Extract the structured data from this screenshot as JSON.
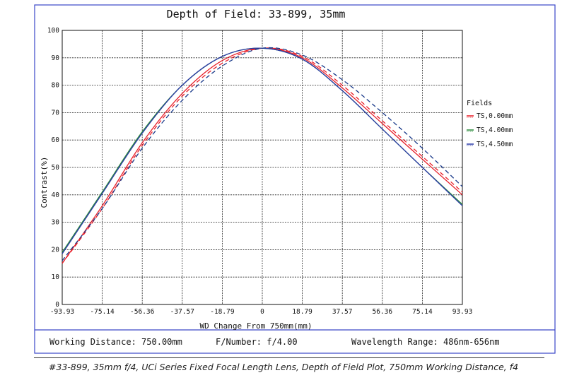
{
  "chart_data": {
    "type": "line",
    "title": "Depth of Field: 33-899, 35mm",
    "xlabel": "WD Change From 750mm(mm)",
    "ylabel": "Contrast(%)",
    "xlim": [
      -93.93,
      93.93
    ],
    "ylim": [
      0,
      100
    ],
    "x_ticks": [
      "-93.93",
      "-75.14",
      "-56.36",
      "-37.57",
      "-18.79",
      "0",
      "18.79",
      "37.57",
      "56.36",
      "75.14",
      "93.93"
    ],
    "y_ticks": [
      "0",
      "10",
      "20",
      "30",
      "40",
      "50",
      "60",
      "70",
      "80",
      "90",
      "100"
    ],
    "grid": true,
    "legend_title": "Fields",
    "legend_position": "right",
    "series": [
      {
        "name": "TS,0.00mm",
        "color": "#e8202a",
        "style": "solid",
        "x": [
          -93.93,
          -75.14,
          -56.36,
          -37.57,
          -18.79,
          0,
          18.79,
          37.57,
          56.36,
          75.14,
          93.93
        ],
        "y": [
          15,
          36,
          59,
          77,
          89,
          93.5,
          90,
          79,
          66,
          53,
          40
        ]
      },
      {
        "name": "TS,0.00mm (S)",
        "color": "#e8202a",
        "style": "dashed",
        "x": [
          -93.93,
          -75.14,
          -56.36,
          -37.57,
          -18.79,
          0,
          18.79,
          37.57,
          56.36,
          75.14,
          93.93
        ],
        "y": [
          15,
          35,
          58,
          76,
          88,
          93.5,
          90.5,
          80,
          67,
          54,
          41
        ]
      },
      {
        "name": "TS,4.00mm",
        "color": "#2a8a3a",
        "style": "solid",
        "x": [
          -93.93,
          -75.14,
          -56.36,
          -37.57,
          -18.79,
          0,
          18.79,
          37.57,
          56.36,
          75.14,
          93.93
        ],
        "y": [
          19,
          41,
          63,
          80,
          90.5,
          93.5,
          89.5,
          78,
          64,
          50,
          36.5
        ]
      },
      {
        "name": "TS,4.50mm",
        "color": "#2b3aa8",
        "style": "solid",
        "x": [
          -93.93,
          -75.14,
          -56.36,
          -37.57,
          -18.79,
          0,
          18.79,
          37.57,
          56.36,
          75.14,
          93.93
        ],
        "y": [
          18.5,
          40.5,
          62.5,
          80,
          90.5,
          93.5,
          89.5,
          78,
          64,
          50,
          36
        ]
      },
      {
        "name": "TS,4.50mm (S)",
        "color": "#1a3a8a",
        "style": "dashed",
        "x": [
          -93.93,
          -75.14,
          -56.36,
          -37.57,
          -18.79,
          0,
          18.79,
          37.57,
          56.36,
          75.14,
          93.93
        ],
        "y": [
          16,
          35,
          57,
          74.5,
          87,
          93.5,
          91,
          82,
          70,
          57,
          43
        ]
      }
    ],
    "legend": [
      {
        "label": "TS,0.00mm",
        "color": "#e8202a"
      },
      {
        "label": "TS,4.00mm",
        "color": "#2a8a3a"
      },
      {
        "label": "TS,4.50mm",
        "color": "#2b3aa8"
      }
    ]
  },
  "footer": {
    "working_distance": "Working Distance: 750.00mm",
    "f_number": "F/Number: f/4.00",
    "wavelength": "Wavelength Range: 486nm-656nm"
  },
  "caption": "#33-899, 35mm f/4, UCi Series Fixed Focal Length Lens, Depth of Field Plot, 750mm Working Distance, f4"
}
